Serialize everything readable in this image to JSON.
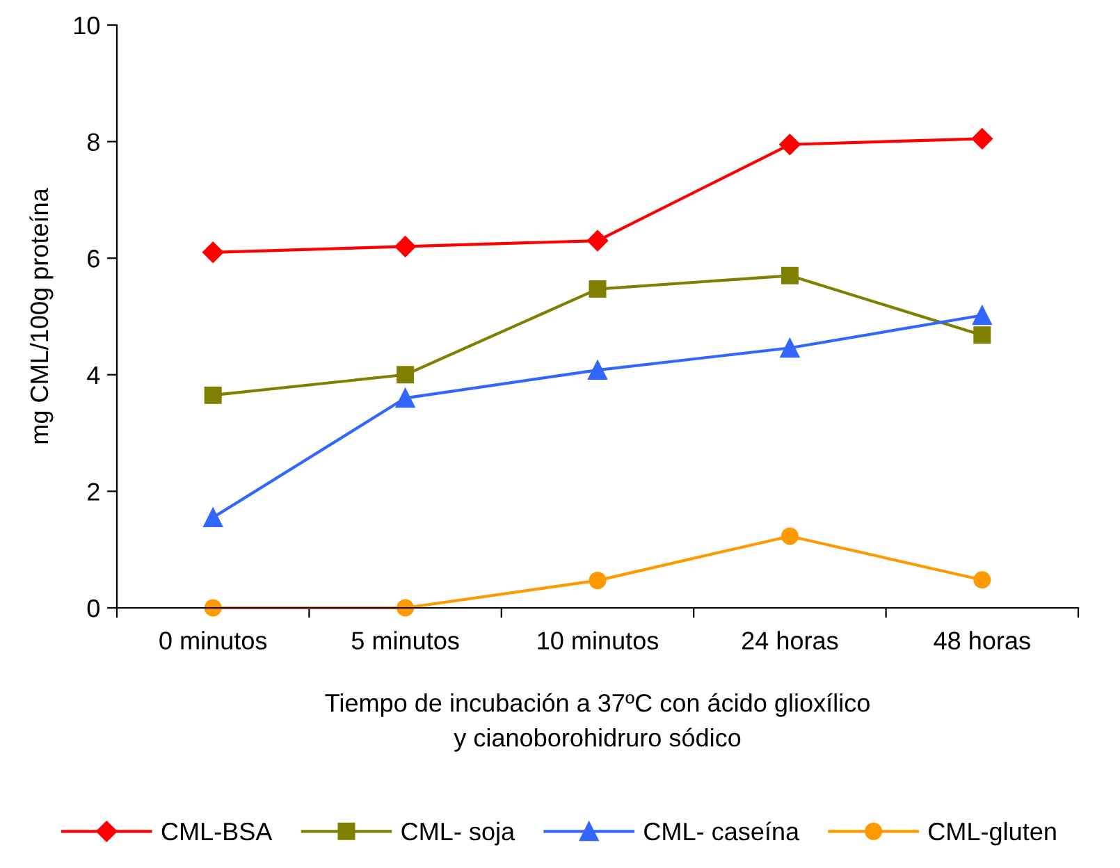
{
  "chart_data": {
    "type": "line",
    "xlabel": "Tiempo de incubación a 37ºC con ácido glioxílico\ny cianoborohidruro sódico",
    "ylabel": "mg CML/100g proteína",
    "categories": [
      "0 minutos",
      "5 minutos",
      "10 minutos",
      "24 horas",
      "48 horas"
    ],
    "series": [
      {
        "name": "CML-BSA",
        "color": "#ff0000",
        "marker": "diamond",
        "values": [
          6.1,
          6.2,
          6.3,
          7.95,
          8.05
        ]
      },
      {
        "name": "CML- soja",
        "color": "#808000",
        "marker": "square",
        "values": [
          3.65,
          4.0,
          5.47,
          5.7,
          4.68
        ]
      },
      {
        "name": "CML- caseína",
        "color": "#3366ff",
        "marker": "triangle",
        "values": [
          1.55,
          3.6,
          4.08,
          4.46,
          5.02
        ]
      },
      {
        "name": "CML-gluten",
        "color": "#ff9900",
        "marker": "circle",
        "values": [
          0,
          0,
          0.47,
          1.23,
          0.48
        ]
      }
    ],
    "ylim": [
      0,
      10
    ],
    "yticks": [
      0,
      2,
      4,
      6,
      8,
      10
    ],
    "grid": false,
    "legend": "bottom",
    "line_style": "solid"
  }
}
